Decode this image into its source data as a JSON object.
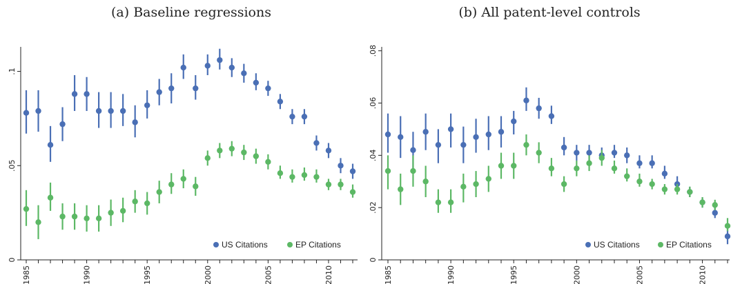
{
  "chart_data": [
    {
      "type": "scatter",
      "title": "(a) Baseline regressions",
      "xlabel": "",
      "ylabel": "",
      "xlim": [
        1984.5,
        2012.5
      ],
      "ylim": [
        0,
        0.113
      ],
      "x_ticks": [
        1985,
        1990,
        1995,
        2000,
        2005,
        2010
      ],
      "x_tick_labels": [
        "1985",
        "1990",
        "1995",
        "2000",
        "2005",
        "2010"
      ],
      "y_ticks": [
        0,
        0.05,
        0.1
      ],
      "y_tick_labels": [
        "0",
        ".05",
        ".1"
      ],
      "grid": false,
      "legend_position": "bottom-right",
      "error_bars": true,
      "x": [
        1985,
        1986,
        1987,
        1988,
        1989,
        1990,
        1991,
        1992,
        1993,
        1994,
        1995,
        1996,
        1997,
        1998,
        1999,
        2000,
        2001,
        2002,
        2003,
        2004,
        2005,
        2006,
        2007,
        2008,
        2009,
        2010,
        2011,
        2012
      ],
      "series": [
        {
          "name": "US Citations",
          "color": "#4a6fb5",
          "values": [
            0.078,
            0.079,
            0.061,
            0.072,
            0.088,
            0.088,
            0.079,
            0.079,
            0.079,
            0.073,
            0.082,
            0.089,
            0.091,
            0.102,
            0.091,
            0.103,
            0.106,
            0.102,
            0.099,
            0.094,
            0.091,
            0.084,
            0.076,
            0.076,
            0.062,
            0.058,
            0.05,
            0.047
          ],
          "lower": [
            0.067,
            0.068,
            0.052,
            0.063,
            0.079,
            0.079,
            0.07,
            0.07,
            0.071,
            0.065,
            0.075,
            0.082,
            0.083,
            0.096,
            0.085,
            0.098,
            0.101,
            0.097,
            0.094,
            0.09,
            0.087,
            0.08,
            0.072,
            0.072,
            0.058,
            0.054,
            0.046,
            0.043
          ],
          "upper": [
            0.09,
            0.09,
            0.071,
            0.081,
            0.098,
            0.097,
            0.089,
            0.089,
            0.088,
            0.082,
            0.09,
            0.096,
            0.099,
            0.109,
            0.098,
            0.109,
            0.112,
            0.107,
            0.104,
            0.099,
            0.095,
            0.088,
            0.08,
            0.08,
            0.066,
            0.062,
            0.054,
            0.051
          ]
        },
        {
          "name": "EP Citations",
          "color": "#5cb865",
          "values": [
            0.027,
            0.02,
            0.033,
            0.023,
            0.023,
            0.022,
            0.022,
            0.025,
            0.026,
            0.031,
            0.03,
            0.036,
            0.04,
            0.043,
            0.039,
            0.054,
            0.058,
            0.059,
            0.057,
            0.055,
            0.052,
            0.046,
            0.044,
            0.045,
            0.044,
            0.04,
            0.04,
            0.036
          ],
          "lower": [
            0.018,
            0.011,
            0.026,
            0.016,
            0.016,
            0.015,
            0.015,
            0.018,
            0.02,
            0.025,
            0.024,
            0.03,
            0.035,
            0.038,
            0.034,
            0.05,
            0.054,
            0.055,
            0.053,
            0.051,
            0.048,
            0.043,
            0.041,
            0.042,
            0.041,
            0.037,
            0.037,
            0.033
          ],
          "upper": [
            0.037,
            0.029,
            0.041,
            0.03,
            0.03,
            0.029,
            0.029,
            0.032,
            0.033,
            0.037,
            0.036,
            0.042,
            0.046,
            0.048,
            0.044,
            0.058,
            0.062,
            0.063,
            0.061,
            0.059,
            0.056,
            0.05,
            0.048,
            0.049,
            0.048,
            0.043,
            0.043,
            0.04
          ]
        }
      ]
    },
    {
      "type": "scatter",
      "title": "(b) All patent-level controls",
      "xlabel": "",
      "ylabel": "",
      "xlim": [
        1984.5,
        2012.5
      ],
      "ylim": [
        0,
        0.0815
      ],
      "x_ticks": [
        1985,
        1990,
        1995,
        2000,
        2005,
        2010
      ],
      "x_tick_labels": [
        "1985",
        "1990",
        "1995",
        "2000",
        "2005",
        "2010"
      ],
      "y_ticks": [
        0,
        0.02,
        0.04,
        0.06,
        0.08
      ],
      "y_tick_labels": [
        "0",
        ".02",
        ".04",
        ".06",
        ".08"
      ],
      "grid": false,
      "legend_position": "bottom-right",
      "error_bars": true,
      "x": [
        1985,
        1986,
        1987,
        1988,
        1989,
        1990,
        1991,
        1992,
        1993,
        1994,
        1995,
        1996,
        1997,
        1998,
        1999,
        2000,
        2001,
        2002,
        2003,
        2004,
        2005,
        2006,
        2007,
        2008,
        2009,
        2010,
        2011,
        2012
      ],
      "series": [
        {
          "name": "US Citations",
          "color": "#4a6fb5",
          "values": [
            0.048,
            0.047,
            0.042,
            0.049,
            0.044,
            0.05,
            0.044,
            0.047,
            0.048,
            0.049,
            0.053,
            0.061,
            0.058,
            0.055,
            0.043,
            0.041,
            0.041,
            0.04,
            0.041,
            0.04,
            0.037,
            0.037,
            0.033,
            0.029,
            0.026,
            0.022,
            0.018,
            0.009
          ],
          "lower": [
            0.041,
            0.039,
            0.035,
            0.042,
            0.037,
            0.043,
            0.037,
            0.041,
            0.042,
            0.043,
            0.048,
            0.057,
            0.054,
            0.052,
            0.04,
            0.038,
            0.038,
            0.038,
            0.039,
            0.037,
            0.035,
            0.035,
            0.031,
            0.027,
            0.024,
            0.02,
            0.016,
            0.006
          ],
          "upper": [
            0.056,
            0.055,
            0.049,
            0.056,
            0.05,
            0.056,
            0.051,
            0.054,
            0.055,
            0.055,
            0.057,
            0.066,
            0.062,
            0.059,
            0.047,
            0.044,
            0.044,
            0.043,
            0.044,
            0.043,
            0.04,
            0.04,
            0.036,
            0.032,
            0.028,
            0.024,
            0.02,
            0.012
          ]
        },
        {
          "name": "EP Citations",
          "color": "#5cb865",
          "values": [
            0.034,
            0.027,
            0.034,
            0.03,
            0.022,
            0.022,
            0.028,
            0.029,
            0.031,
            0.036,
            0.036,
            0.044,
            0.041,
            0.035,
            0.029,
            0.035,
            0.037,
            0.039,
            0.035,
            0.032,
            0.03,
            0.029,
            0.027,
            0.027,
            0.026,
            0.022,
            0.021,
            0.013
          ],
          "lower": [
            0.027,
            0.021,
            0.028,
            0.024,
            0.018,
            0.018,
            0.022,
            0.024,
            0.026,
            0.031,
            0.031,
            0.04,
            0.037,
            0.032,
            0.026,
            0.032,
            0.034,
            0.036,
            0.033,
            0.03,
            0.028,
            0.027,
            0.025,
            0.025,
            0.024,
            0.02,
            0.019,
            0.011
          ],
          "upper": [
            0.04,
            0.033,
            0.04,
            0.036,
            0.027,
            0.027,
            0.033,
            0.034,
            0.036,
            0.041,
            0.041,
            0.048,
            0.045,
            0.039,
            0.032,
            0.038,
            0.04,
            0.042,
            0.038,
            0.035,
            0.033,
            0.031,
            0.029,
            0.029,
            0.028,
            0.024,
            0.023,
            0.016
          ]
        }
      ]
    }
  ]
}
